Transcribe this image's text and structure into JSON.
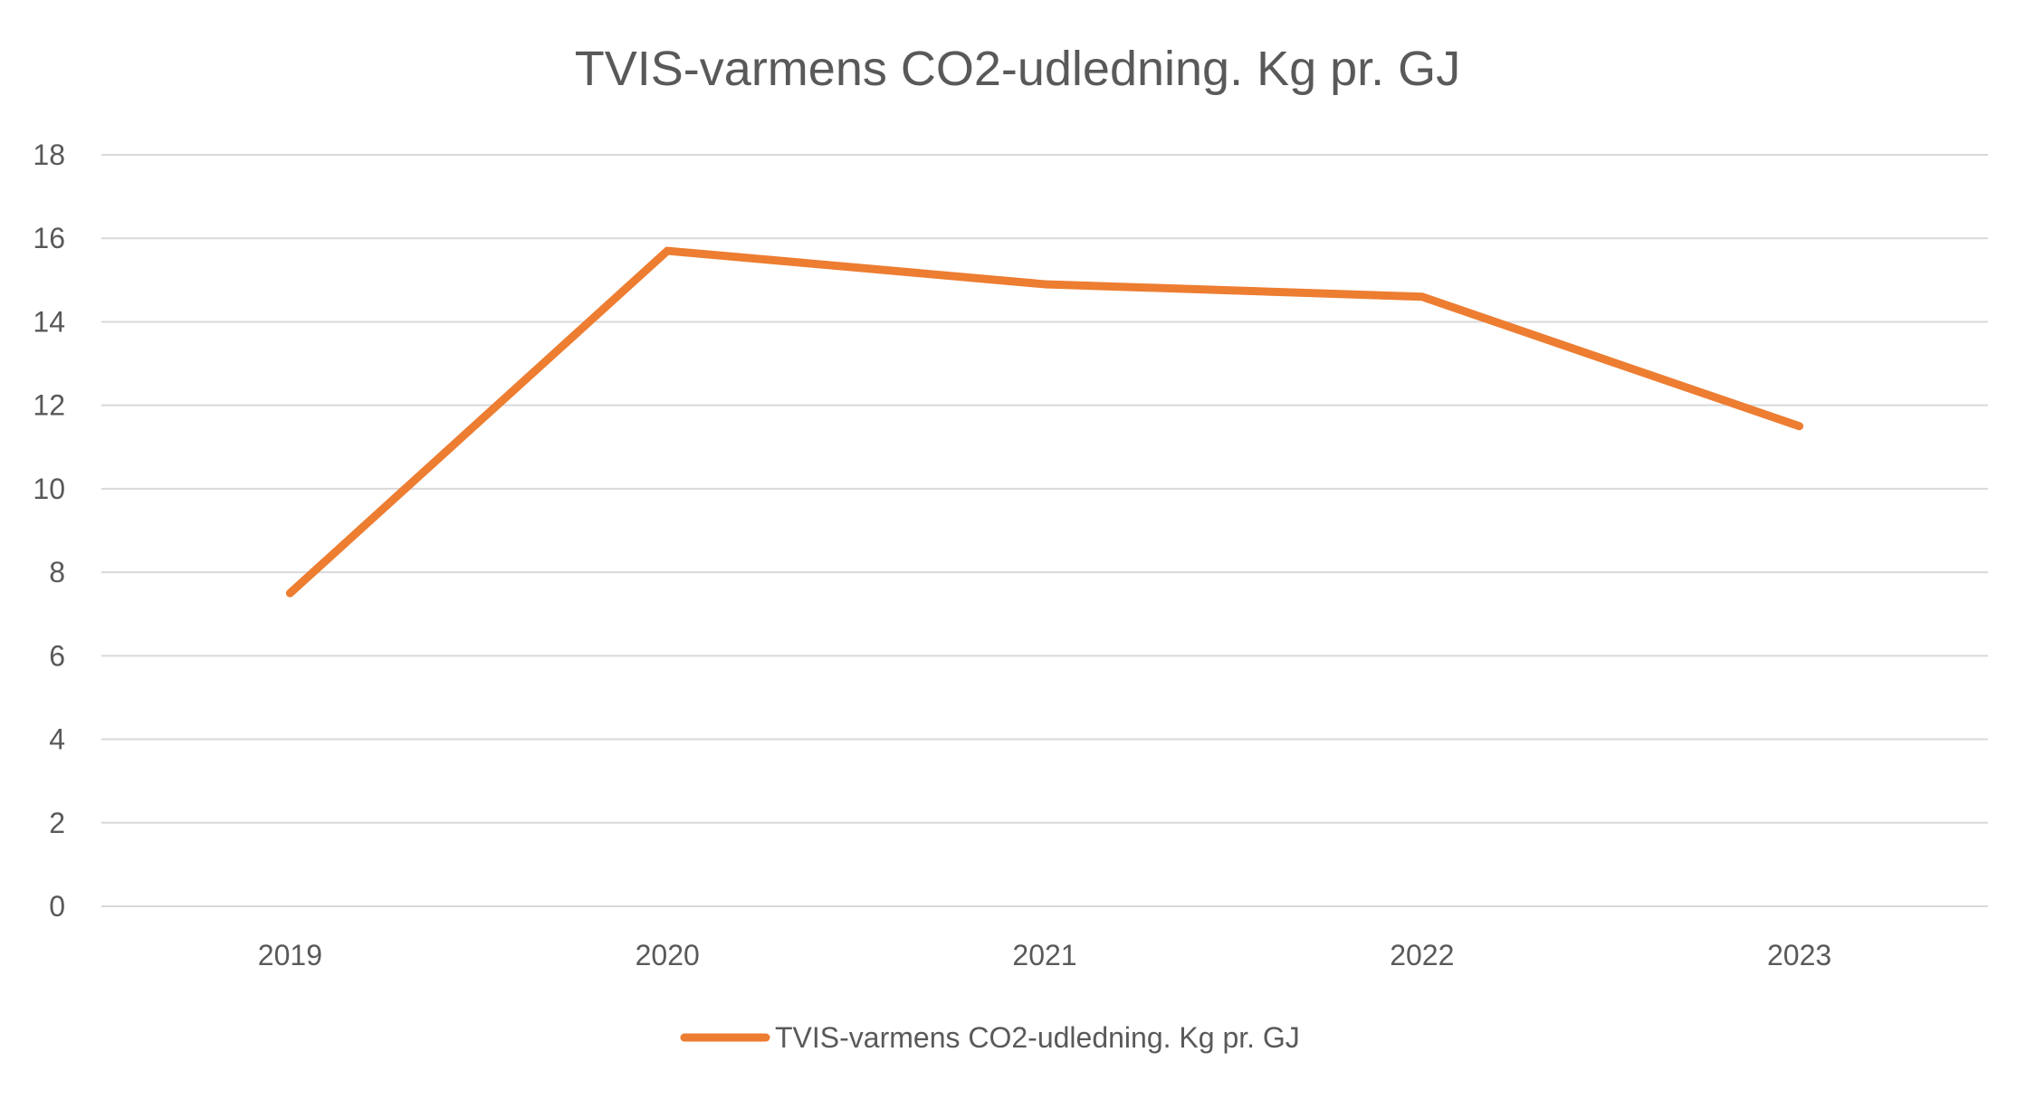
{
  "chart_data": {
    "type": "line",
    "title": "TVIS-varmens CO2-udledning. Kg pr. GJ",
    "xlabel": "",
    "ylabel": "",
    "categories": [
      "2019",
      "2020",
      "2021",
      "2022",
      "2023"
    ],
    "series": [
      {
        "name": "TVIS-varmens CO2-udledning. Kg pr. GJ",
        "values": [
          7.5,
          15.7,
          14.9,
          14.6,
          11.5
        ],
        "color": "#ED7D31"
      }
    ],
    "ylim": [
      0,
      18
    ],
    "yticks": [
      "0",
      "2",
      "4",
      "6",
      "8",
      "10",
      "12",
      "14",
      "16",
      "18"
    ],
    "grid": true,
    "gridColor": "#D9D9D9",
    "legend": "bottom"
  }
}
